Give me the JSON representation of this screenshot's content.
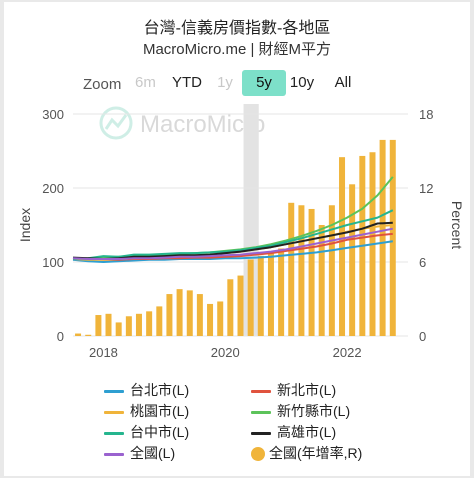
{
  "header": {
    "title": "台灣-信義房價指數-各地區",
    "subtitle": "MacroMicro.me | 財經M平方"
  },
  "watermark": {
    "text": "MacroMicro"
  },
  "zoom": {
    "label": "Zoom",
    "buttons": [
      {
        "label": "6m",
        "state": "disabled"
      },
      {
        "label": "YTD",
        "state": "normal"
      },
      {
        "label": "1y",
        "state": "disabled"
      },
      {
        "label": "5y",
        "state": "active"
      },
      {
        "label": "10y",
        "state": "normal"
      },
      {
        "label": "All",
        "state": "normal"
      }
    ]
  },
  "chart_data": {
    "type": "line",
    "left_axis": {
      "title": "Index",
      "range": [
        0,
        300
      ],
      "ticks": [
        0,
        100,
        200,
        300
      ]
    },
    "right_axis": {
      "title": "Percent",
      "range": [
        0,
        18
      ],
      "ticks": [
        0,
        6,
        12,
        18
      ]
    },
    "x_axis": {
      "range": [
        2017.5,
        2023.0
      ],
      "ticks": [
        2018,
        2020,
        2022
      ]
    },
    "x": [
      2017.5,
      2017.75,
      2018.0,
      2018.25,
      2018.5,
      2018.75,
      2019.0,
      2019.25,
      2019.5,
      2019.75,
      2020.0,
      2020.25,
      2020.5,
      2020.75,
      2021.0,
      2021.25,
      2021.5,
      2021.75,
      2022.0,
      2022.25,
      2022.5,
      2022.75
    ],
    "series": [
      {
        "name": "台北市(L)",
        "axis": "left",
        "color": "#2e9fd1",
        "values": [
          103,
          101,
          100,
          101,
          102,
          103,
          103,
          104,
          104,
          104,
          105,
          105,
          106,
          107,
          109,
          111,
          113,
          116,
          119,
          122,
          125,
          128
        ]
      },
      {
        "name": "新北市(L)",
        "axis": "left",
        "color": "#e0533e",
        "values": [
          104,
          104,
          103,
          103,
          104,
          104,
          105,
          105,
          106,
          106,
          107,
          108,
          110,
          112,
          115,
          118,
          121,
          125,
          130,
          133,
          136,
          138
        ]
      },
      {
        "name": "桃園市(L)",
        "axis": "left",
        "color": "#f0b43a",
        "values": [
          104,
          103,
          103,
          104,
          105,
          106,
          107,
          108,
          109,
          110,
          112,
          114,
          117,
          120,
          124,
          128,
          132,
          136,
          141,
          145,
          148,
          150
        ]
      },
      {
        "name": "新竹縣市(L)",
        "axis": "left",
        "color": "#5cc35a",
        "values": [
          105,
          104,
          106,
          107,
          108,
          109,
          110,
          111,
          112,
          113,
          115,
          117,
          120,
          124,
          129,
          135,
          142,
          150,
          160,
          172,
          190,
          215
        ]
      },
      {
        "name": "台中市(L)",
        "axis": "left",
        "color": "#25b58e",
        "values": [
          104,
          105,
          108,
          107,
          110,
          110,
          111,
          112,
          112,
          113,
          114,
          116,
          119,
          122,
          127,
          132,
          138,
          144,
          150,
          155,
          160,
          170
        ]
      },
      {
        "name": "高雄市(L)",
        "axis": "left",
        "color": "#222222",
        "values": [
          106,
          105,
          104,
          105,
          107,
          107,
          108,
          109,
          109,
          110,
          112,
          114,
          117,
          120,
          124,
          128,
          132,
          136,
          140,
          145,
          152,
          153
        ]
      },
      {
        "name": "全國(L)",
        "axis": "left",
        "color": "#9a62cf",
        "values": [
          105,
          104,
          104,
          104,
          105,
          105,
          106,
          107,
          107,
          108,
          109,
          110,
          112,
          114,
          117,
          121,
          125,
          129,
          133,
          137,
          141,
          145
        ]
      }
    ],
    "bar_series": {
      "name": "全國(年增率,R)",
      "axis": "right",
      "color": "#f0b43a",
      "type": "bar",
      "x": [
        2017.583,
        2017.75,
        2017.917,
        2018.083,
        2018.25,
        2018.417,
        2018.583,
        2018.75,
        2018.917,
        2019.083,
        2019.25,
        2019.417,
        2019.583,
        2019.75,
        2019.917,
        2020.083,
        2020.25,
        2020.417,
        2020.583,
        2020.75,
        2020.917,
        2021.083,
        2021.25,
        2021.417,
        2021.583,
        2021.75,
        2021.917,
        2022.083,
        2022.25,
        2022.417,
        2022.583,
        2022.75
      ],
      "values": [
        0.2,
        0.1,
        1.7,
        1.8,
        1.1,
        1.6,
        1.8,
        2.0,
        2.4,
        3.4,
        3.8,
        3.7,
        3.4,
        2.6,
        2.8,
        4.6,
        4.9,
        6.2,
        6.5,
        6.8,
        7.1,
        10.8,
        10.6,
        10.3,
        9.0,
        10.6,
        14.5,
        12.3,
        14.6,
        14.9,
        15.9,
        15.9
      ]
    },
    "highlight_band": {
      "from": 2020.3,
      "to": 2020.55
    },
    "legend_placement": "bottom",
    "grid": true
  }
}
